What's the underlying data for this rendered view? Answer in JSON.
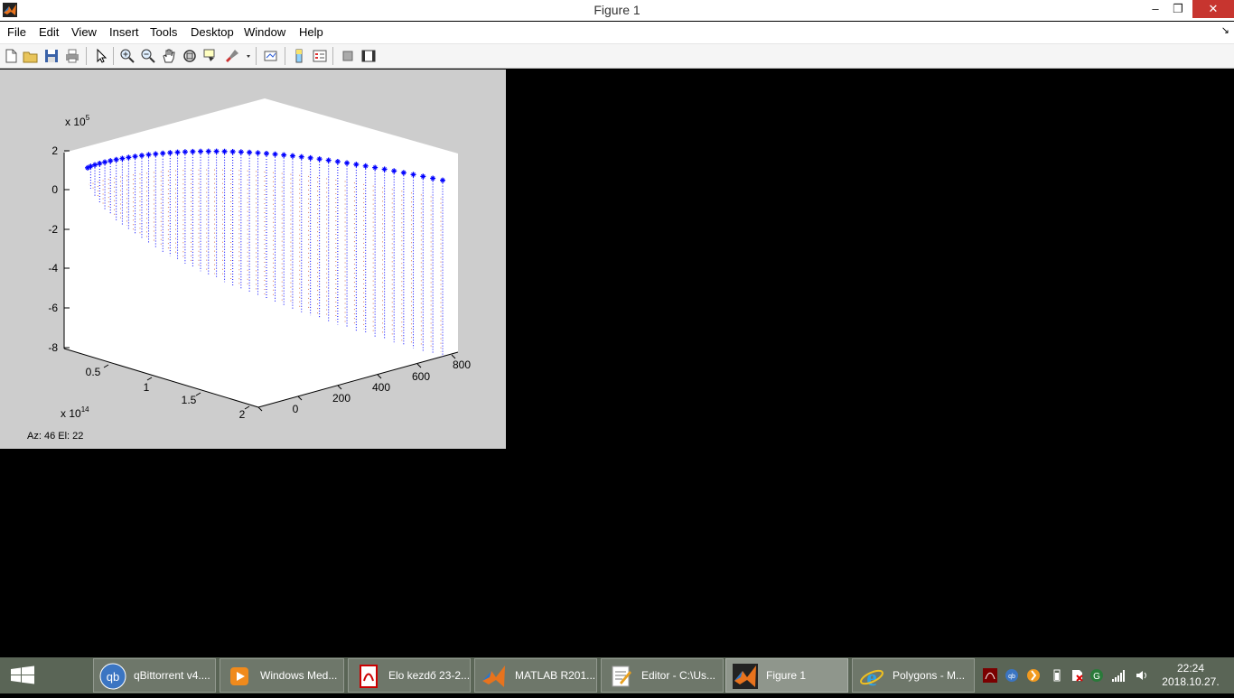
{
  "window": {
    "title": "Figure 1",
    "min": "–",
    "restore": "❐",
    "close": "✕"
  },
  "menu": [
    "File",
    "Edit",
    "View",
    "Insert",
    "Tools",
    "Desktop",
    "Window",
    "Help"
  ],
  "dock_arrow": "↘",
  "toolbar": [
    {
      "name": "new-figure-icon"
    },
    {
      "name": "open-file-icon"
    },
    {
      "name": "save-icon"
    },
    {
      "name": "print-icon"
    },
    {
      "name": "edit-plot-arrow-icon"
    },
    {
      "name": "zoom-in-icon"
    },
    {
      "name": "zoom-out-icon"
    },
    {
      "name": "pan-hand-icon"
    },
    {
      "name": "rotate-3d-icon"
    },
    {
      "name": "data-cursor-icon"
    },
    {
      "name": "brush-icon"
    },
    {
      "name": "link-plot-icon"
    },
    {
      "name": "colorbar-icon"
    },
    {
      "name": "legend-icon"
    },
    {
      "name": "hide-plot-tools-icon"
    },
    {
      "name": "show-plot-tools-icon"
    }
  ],
  "plot": {
    "z_exponent_label": "x 10",
    "z_exponent": "5",
    "z_ticks": [
      "2",
      "0",
      "-2",
      "-4",
      "-6",
      "-8"
    ],
    "x_exponent_label": "x 10",
    "x_exponent": "14",
    "x_ticks": [
      "0.5",
      "1",
      "1.5",
      "2"
    ],
    "y_ticks": [
      "0",
      "200",
      "400",
      "600",
      "800"
    ],
    "status": "Az:   46 El:   22",
    "series_color": "#0000ff",
    "drop_color_1": "#0000ff",
    "drop_color_2": "#d06030"
  },
  "taskbar": {
    "items": [
      {
        "label": "qBittorrent v4....",
        "icon": "qbittorrent-icon"
      },
      {
        "label": "Windows Med...",
        "icon": "media-player-icon"
      },
      {
        "label": "Elo kezdő 23-2...",
        "icon": "pdf-icon"
      },
      {
        "label": "MATLAB R201...",
        "icon": "matlab-icon"
      },
      {
        "label": "Editor - C:\\Us...",
        "icon": "editor-icon"
      },
      {
        "label": "Figure 1",
        "icon": "matlab-figure-icon"
      },
      {
        "label": "Polygons - M...",
        "icon": "internet-explorer-icon"
      }
    ],
    "clock_time": "22:24",
    "clock_date": "2018.10.27."
  }
}
